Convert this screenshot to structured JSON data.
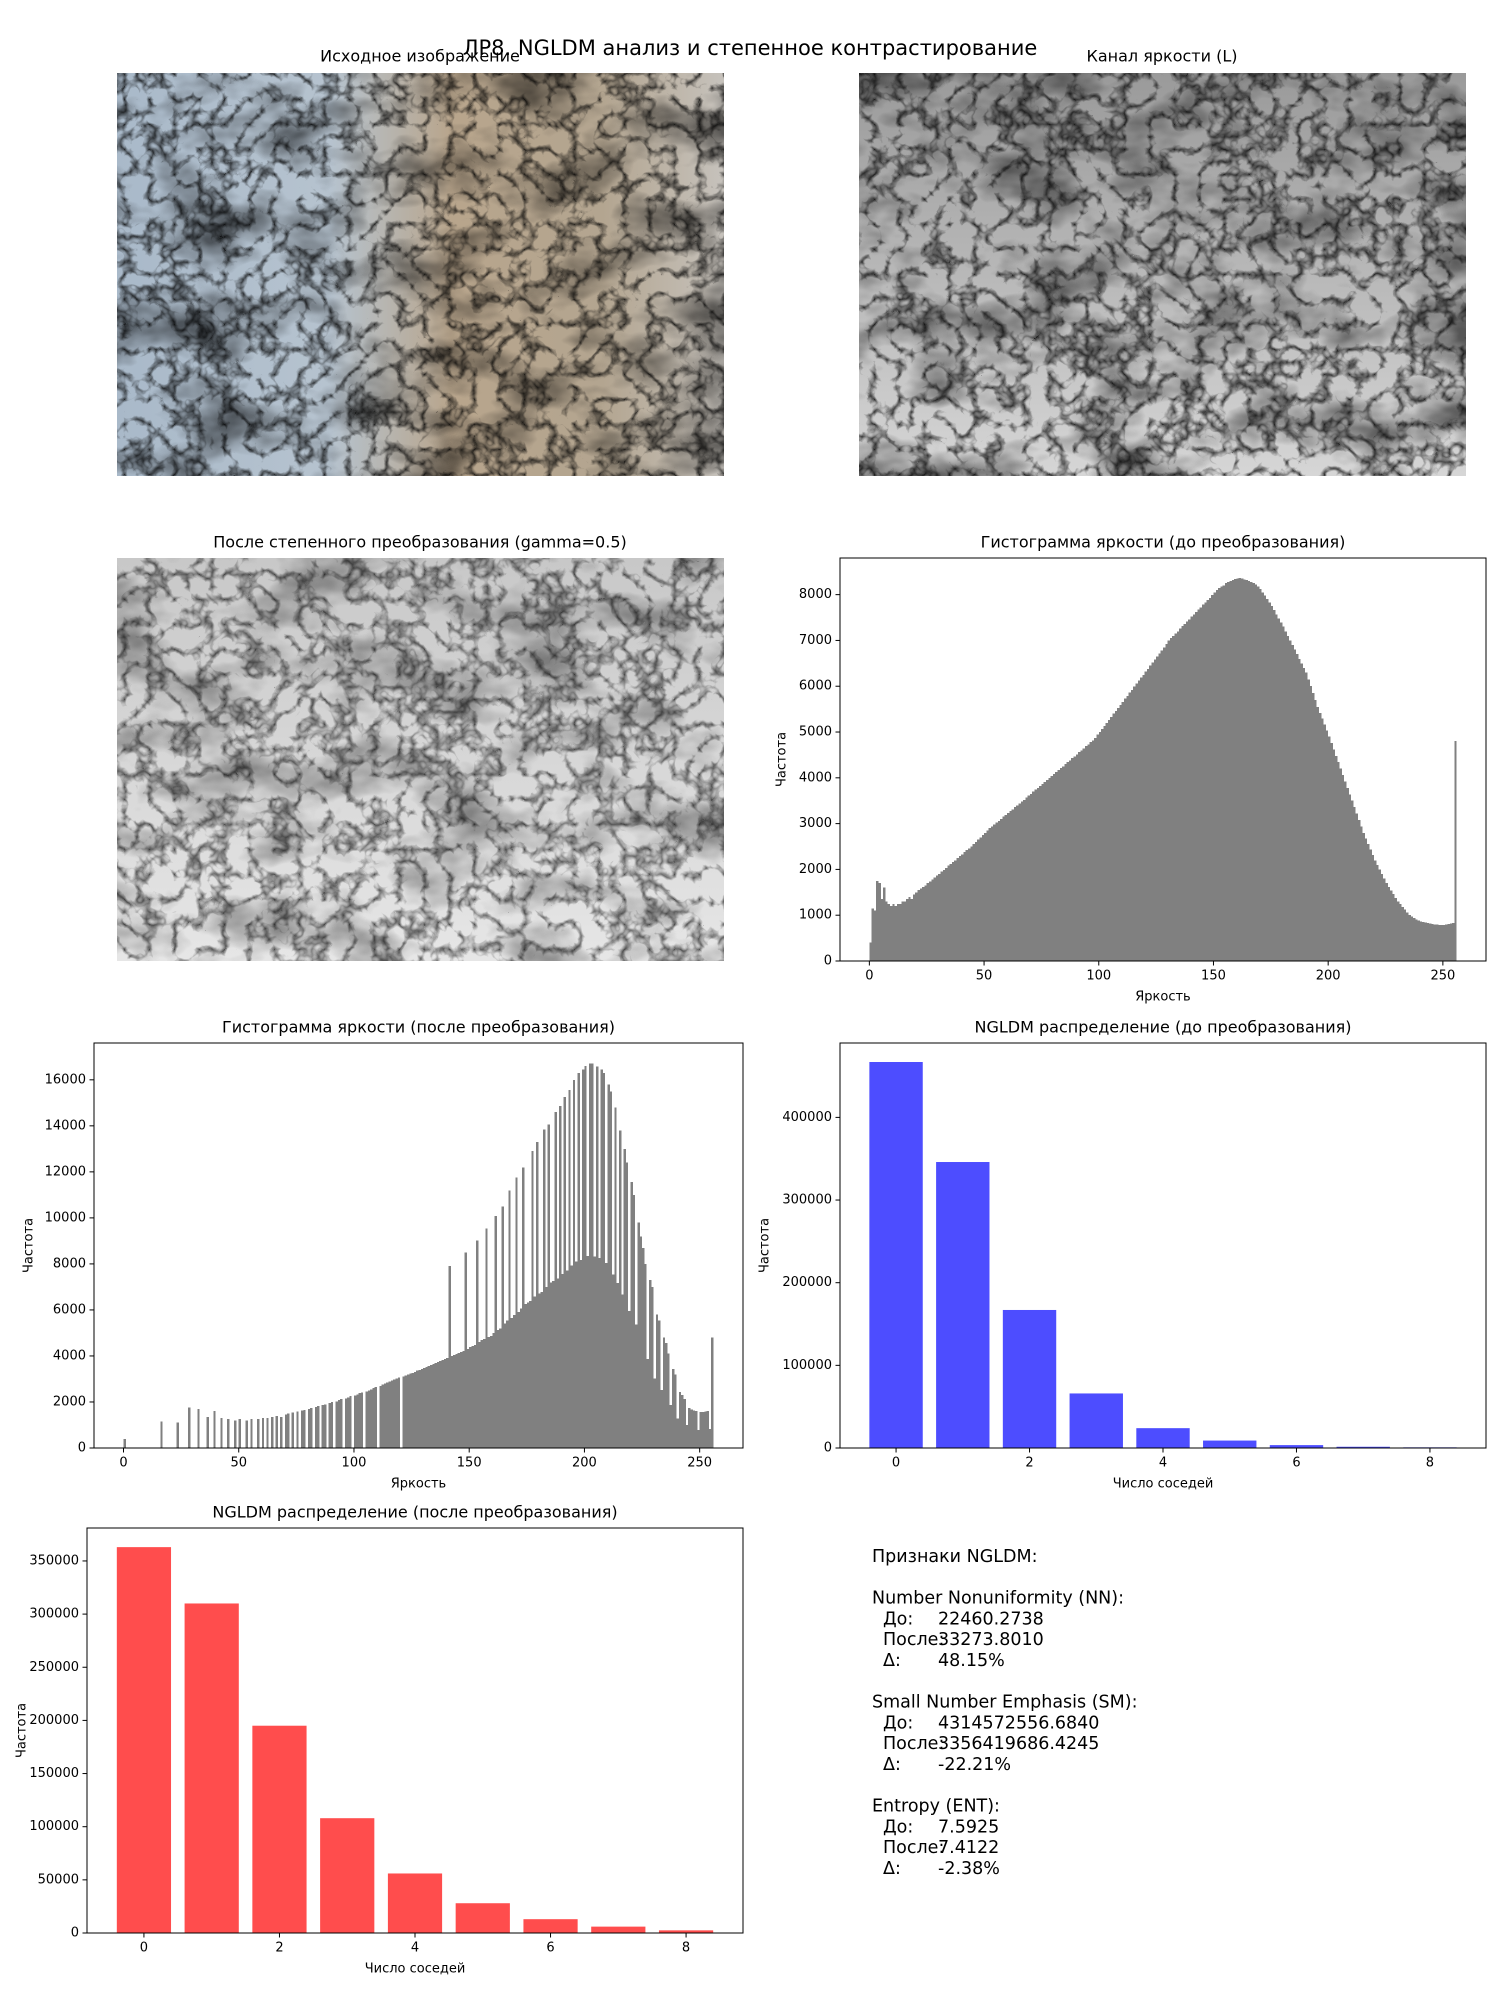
{
  "title": "ЛР8. NGLDM анализ и степенное контрастирование",
  "images": [
    {
      "title": "Исходное изображение"
    },
    {
      "title": "Канал яркости (L)"
    },
    {
      "title": "После степенного преобразования (gamma=0.5)"
    }
  ],
  "chart_data": [
    {
      "type": "histogram",
      "title": "Гистограмма яркости (до преобразования)",
      "xlabel": "Яркость",
      "ylabel": "Частота",
      "color": "#808080",
      "bins": [
        0,
        1,
        2,
        3,
        4,
        5,
        6,
        7,
        8,
        9,
        10,
        11,
        12,
        13,
        14,
        15,
        16,
        17,
        18,
        19,
        20,
        21,
        22,
        23,
        24,
        25,
        26,
        27,
        28,
        29,
        30,
        31,
        32,
        33,
        34,
        35,
        36,
        37,
        38,
        39,
        40,
        41,
        42,
        43,
        44,
        45,
        46,
        47,
        48,
        49,
        50,
        51,
        52,
        53,
        54,
        55,
        56,
        57,
        58,
        59,
        60,
        61,
        62,
        63,
        64,
        65,
        66,
        67,
        68,
        69,
        70,
        71,
        72,
        73,
        74,
        75,
        76,
        77,
        78,
        79,
        80,
        81,
        82,
        83,
        84,
        85,
        86,
        87,
        88,
        89,
        90,
        91,
        92,
        93,
        94,
        95,
        96,
        97,
        98,
        99,
        100,
        101,
        102,
        103,
        104,
        105,
        106,
        107,
        108,
        109,
        110,
        111,
        112,
        113,
        114,
        115,
        116,
        117,
        118,
        119,
        120,
        121,
        122,
        123,
        124,
        125,
        126,
        127,
        128,
        129,
        130,
        131,
        132,
        133,
        134,
        135,
        136,
        137,
        138,
        139,
        140,
        141,
        142,
        143,
        144,
        145,
        146,
        147,
        148,
        149,
        150,
        151,
        152,
        153,
        154,
        155,
        156,
        157,
        158,
        159,
        160,
        161,
        162,
        163,
        164,
        165,
        166,
        167,
        168,
        169,
        170,
        171,
        172,
        173,
        174,
        175,
        176,
        177,
        178,
        179,
        180,
        181,
        182,
        183,
        184,
        185,
        186,
        187,
        188,
        189,
        190,
        191,
        192,
        193,
        194,
        195,
        196,
        197,
        198,
        199,
        200,
        201,
        202,
        203,
        204,
        205,
        206,
        207,
        208,
        209,
        210,
        211,
        212,
        213,
        214,
        215,
        216,
        217,
        218,
        219,
        220,
        221,
        222,
        223,
        224,
        225,
        226,
        227,
        228,
        229,
        230,
        231,
        232,
        233,
        234,
        235,
        236,
        237,
        238,
        239,
        240,
        241,
        242,
        243,
        244,
        245,
        246,
        247,
        248,
        249,
        250,
        251,
        252,
        253,
        254,
        255,
        256
      ],
      "values": [
        400,
        1150,
        1100,
        1750,
        1700,
        1350,
        1600,
        1300,
        1250,
        1200,
        1250,
        1200,
        1250,
        1250,
        1300,
        1300,
        1350,
        1400,
        1350,
        1450,
        1500,
        1550,
        1580,
        1620,
        1650,
        1700,
        1740,
        1780,
        1820,
        1870,
        1900,
        1950,
        1990,
        2030,
        2080,
        2120,
        2160,
        2200,
        2250,
        2290,
        2330,
        2380,
        2420,
        2460,
        2500,
        2550,
        2600,
        2650,
        2700,
        2750,
        2800,
        2850,
        2900,
        2940,
        2980,
        3020,
        3060,
        3100,
        3150,
        3190,
        3230,
        3270,
        3310,
        3360,
        3400,
        3440,
        3480,
        3520,
        3570,
        3610,
        3650,
        3700,
        3740,
        3780,
        3820,
        3870,
        3910,
        3950,
        4000,
        4040,
        4080,
        4130,
        4170,
        4210,
        4250,
        4300,
        4340,
        4380,
        4430,
        4470,
        4510,
        4560,
        4600,
        4640,
        4690,
        4730,
        4780,
        4820,
        4870,
        4950,
        5000,
        5070,
        5130,
        5200,
        5260,
        5330,
        5400,
        5460,
        5530,
        5590,
        5660,
        5730,
        5790,
        5860,
        5920,
        5990,
        6060,
        6120,
        6190,
        6250,
        6320,
        6380,
        6450,
        6520,
        6580,
        6650,
        6720,
        6780,
        6850,
        6920,
        7000,
        7050,
        7100,
        7150,
        7200,
        7260,
        7310,
        7360,
        7410,
        7460,
        7520,
        7570,
        7620,
        7670,
        7720,
        7780,
        7830,
        7880,
        7930,
        7990,
        8050,
        8100,
        8150,
        8180,
        8200,
        8250,
        8280,
        8300,
        8320,
        8340,
        8350,
        8360,
        8350,
        8330,
        8320,
        8300,
        8280,
        8250,
        8220,
        8180,
        8120,
        8050,
        7980,
        7900,
        7830,
        7750,
        7660,
        7570,
        7480,
        7390,
        7300,
        7200,
        7100,
        7000,
        6900,
        6800,
        6700,
        6600,
        6500,
        6400,
        6300,
        6150,
        6000,
        5850,
        5700,
        5550,
        5420,
        5290,
        5160,
        5030,
        4900,
        4760,
        4620,
        4480,
        4340,
        4200,
        4060,
        3920,
        3780,
        3640,
        3500,
        3360,
        3220,
        3080,
        2940,
        2800,
        2680,
        2560,
        2440,
        2320,
        2200,
        2100,
        2000,
        1900,
        1800,
        1700,
        1620,
        1540,
        1460,
        1380,
        1300,
        1240,
        1180,
        1120,
        1060,
        1000,
        970,
        940,
        910,
        880,
        860,
        850,
        840,
        830,
        820,
        810,
        800,
        800,
        790,
        790,
        790,
        800,
        810,
        820,
        830,
        4800
      ],
      "xlim": [
        -12.8,
        268.8
      ],
      "ylim": [
        0,
        8800
      ],
      "xticks": [
        0,
        50,
        100,
        150,
        200,
        250
      ],
      "yticks": [
        0,
        1000,
        2000,
        3000,
        4000,
        5000,
        6000,
        7000,
        8000
      ]
    },
    {
      "type": "histogram",
      "title": "Гистограмма яркости (после преобразования)",
      "xlabel": "Яркость",
      "ylabel": "Частота",
      "color": "#808080",
      "bins": [
        0,
        1,
        2,
        3,
        4,
        5,
        6,
        7,
        8,
        9,
        10,
        11,
        12,
        13,
        14,
        15,
        16,
        17,
        18,
        19,
        20,
        21,
        22,
        23,
        24,
        25,
        26,
        27,
        28,
        29,
        30,
        31,
        32,
        33,
        34,
        35,
        36,
        37,
        38,
        39,
        40,
        41,
        42,
        43,
        44,
        45,
        46,
        47,
        48,
        49,
        50,
        51,
        52,
        53,
        54,
        55,
        56,
        57,
        58,
        59,
        60,
        61,
        62,
        63,
        64,
        65,
        66,
        67,
        68,
        69,
        70,
        71,
        72,
        73,
        74,
        75,
        76,
        77,
        78,
        79,
        80,
        81,
        82,
        83,
        84,
        85,
        86,
        87,
        88,
        89,
        90,
        91,
        92,
        93,
        94,
        95,
        96,
        97,
        98,
        99,
        100,
        101,
        102,
        103,
        104,
        105,
        106,
        107,
        108,
        109,
        110,
        111,
        112,
        113,
        114,
        115,
        116,
        117,
        118,
        119,
        120,
        121,
        122,
        123,
        124,
        125,
        126,
        127,
        128,
        129,
        130,
        131,
        132,
        133,
        134,
        135,
        136,
        137,
        138,
        139,
        140,
        141,
        142,
        143,
        144,
        145,
        146,
        147,
        148,
        149,
        150,
        151,
        152,
        153,
        154,
        155,
        156,
        157,
        158,
        159,
        160,
        161,
        162,
        163,
        164,
        165,
        166,
        167,
        168,
        169,
        170,
        171,
        172,
        173,
        174,
        175,
        176,
        177,
        178,
        179,
        180,
        181,
        182,
        183,
        184,
        185,
        186,
        187,
        188,
        189,
        190,
        191,
        192,
        193,
        194,
        195,
        196,
        197,
        198,
        199,
        200,
        201,
        202,
        203,
        204,
        205,
        206,
        207,
        208,
        209,
        210,
        211,
        212,
        213,
        214,
        215,
        216,
        217,
        218,
        219,
        220,
        221,
        222,
        223,
        224,
        225,
        226,
        227,
        228,
        229,
        230,
        231,
        232,
        233,
        234,
        235,
        236,
        237,
        238,
        239,
        240,
        241,
        242,
        243,
        244,
        245,
        246,
        247,
        248,
        249,
        250,
        251,
        252,
        253,
        254,
        255,
        256
      ],
      "values": [
        400,
        0,
        0,
        0,
        0,
        0,
        0,
        0,
        0,
        0,
        0,
        0,
        0,
        0,
        0,
        0,
        1150,
        0,
        0,
        0,
        0,
        0,
        0,
        1100,
        0,
        0,
        0,
        0,
        1750,
        0,
        0,
        0,
        1700,
        0,
        0,
        0,
        1350,
        0,
        0,
        1600,
        0,
        0,
        1300,
        0,
        0,
        1250,
        0,
        0,
        1200,
        0,
        1250,
        0,
        0,
        1200,
        0,
        1250,
        0,
        0,
        1250,
        0,
        1300,
        0,
        1300,
        0,
        1350,
        0,
        1400,
        0,
        1350,
        0,
        1450,
        1500,
        0,
        1550,
        0,
        1580,
        0,
        1620,
        1650,
        0,
        1700,
        1740,
        0,
        1780,
        1820,
        0,
        1870,
        1900,
        0,
        1950,
        1990,
        0,
        2030,
        2080,
        2120,
        0,
        2160,
        2200,
        2250,
        0,
        2290,
        2330,
        2380,
        2420,
        0,
        2460,
        2500,
        2550,
        2600,
        2650,
        0,
        2700,
        2750,
        2800,
        2850,
        2900,
        2940,
        2980,
        3020,
        3060,
        0,
        3100,
        3150,
        3190,
        3230,
        3270,
        3310,
        3360,
        3400,
        3440,
        3480,
        3520,
        3570,
        3610,
        3650,
        3700,
        3740,
        3780,
        3820,
        3870,
        3910,
        7900,
        4000,
        4040,
        4080,
        4130,
        4170,
        4210,
        8500,
        4300,
        4380,
        4430,
        4470,
        9020,
        4600,
        4690,
        4730,
        9540,
        4820,
        4870,
        5000,
        10080,
        5130,
        5200,
        10500,
        5400,
        5530,
        11200,
        5660,
        5790,
        11750,
        5920,
        6060,
        12180,
        6250,
        6320,
        6380,
        12900,
        6580,
        13300,
        6720,
        6790,
        13840,
        6990,
        14050,
        7200,
        7260,
        14600,
        7360,
        14860,
        7570,
        15250,
        7720,
        15560,
        7930,
        15990,
        8100,
        16300,
        8180,
        16450,
        16600,
        8340,
        16700,
        16700,
        8330,
        16580,
        8250,
        16440,
        16300,
        8050,
        15800,
        15500,
        7530,
        14800,
        7180,
        13800,
        6670,
        13000,
        12400,
        5960,
        11550,
        11000,
        5360,
        9800,
        9200,
        8700,
        8000,
        3870,
        7300,
        7000,
        3030,
        5800,
        5540,
        2520,
        4800,
        4560,
        4100,
        1860,
        3430,
        3200,
        1280,
        2440,
        2300,
        2140,
        1000,
        1740,
        1680,
        1640,
        1600,
        790,
        1560,
        1560,
        1580,
        1600,
        820,
        4800
      ],
      "xlim": [
        -12.8,
        268.8
      ],
      "ylim": [
        0,
        17600
      ],
      "xticks": [
        0,
        50,
        100,
        150,
        200,
        250
      ],
      "yticks": [
        0,
        2000,
        4000,
        6000,
        8000,
        10000,
        12000,
        14000,
        16000
      ]
    },
    {
      "type": "bar",
      "title": "NGLDM распределение (до преобразования)",
      "xlabel": "Число соседей",
      "ylabel": "Частота",
      "color": "#4d4dff",
      "x": [
        0,
        1,
        2,
        3,
        4,
        5,
        6,
        7,
        8
      ],
      "values": [
        467000,
        346000,
        167000,
        66000,
        24000,
        9000,
        3500,
        1500,
        800
      ],
      "xlim": [
        -0.84,
        8.84
      ],
      "ylim": [
        0,
        490000
      ],
      "xticks": [
        0,
        2,
        4,
        6,
        8
      ],
      "yticks": [
        0,
        100000,
        200000,
        300000,
        400000
      ]
    },
    {
      "type": "bar",
      "title": "NGLDM распределение (после преобразования)",
      "xlabel": "Число соседей",
      "ylabel": "Частота",
      "color": "#ff4d4d",
      "x": [
        0,
        1,
        2,
        3,
        4,
        5,
        6,
        7,
        8
      ],
      "values": [
        363000,
        310000,
        195000,
        108000,
        56000,
        28000,
        13000,
        6000,
        2500
      ],
      "xlim": [
        -0.84,
        8.84
      ],
      "ylim": [
        0,
        381000
      ],
      "xticks": [
        0,
        2,
        4,
        6,
        8
      ],
      "yticks": [
        0,
        50000,
        100000,
        150000,
        200000,
        250000,
        300000,
        350000
      ]
    }
  ],
  "features": {
    "heading": "Признаки NGLDM:",
    "groups": [
      {
        "name": "Number Nonuniformity (NN):",
        "rows": [
          [
            "До:",
            "22460.2738"
          ],
          [
            "После:",
            "33273.8010"
          ],
          [
            "Δ:",
            "48.15%"
          ]
        ]
      },
      {
        "name": "Small Number Emphasis (SM):",
        "rows": [
          [
            "До:",
            "4314572556.6840"
          ],
          [
            "После:",
            "3356419686.4245"
          ],
          [
            "Δ:",
            "-22.21%"
          ]
        ]
      },
      {
        "name": "Entropy (ENT):",
        "rows": [
          [
            "До:",
            "7.5925"
          ],
          [
            "После:",
            "7.4122"
          ],
          [
            "Δ:",
            "-2.38%"
          ]
        ]
      }
    ]
  }
}
